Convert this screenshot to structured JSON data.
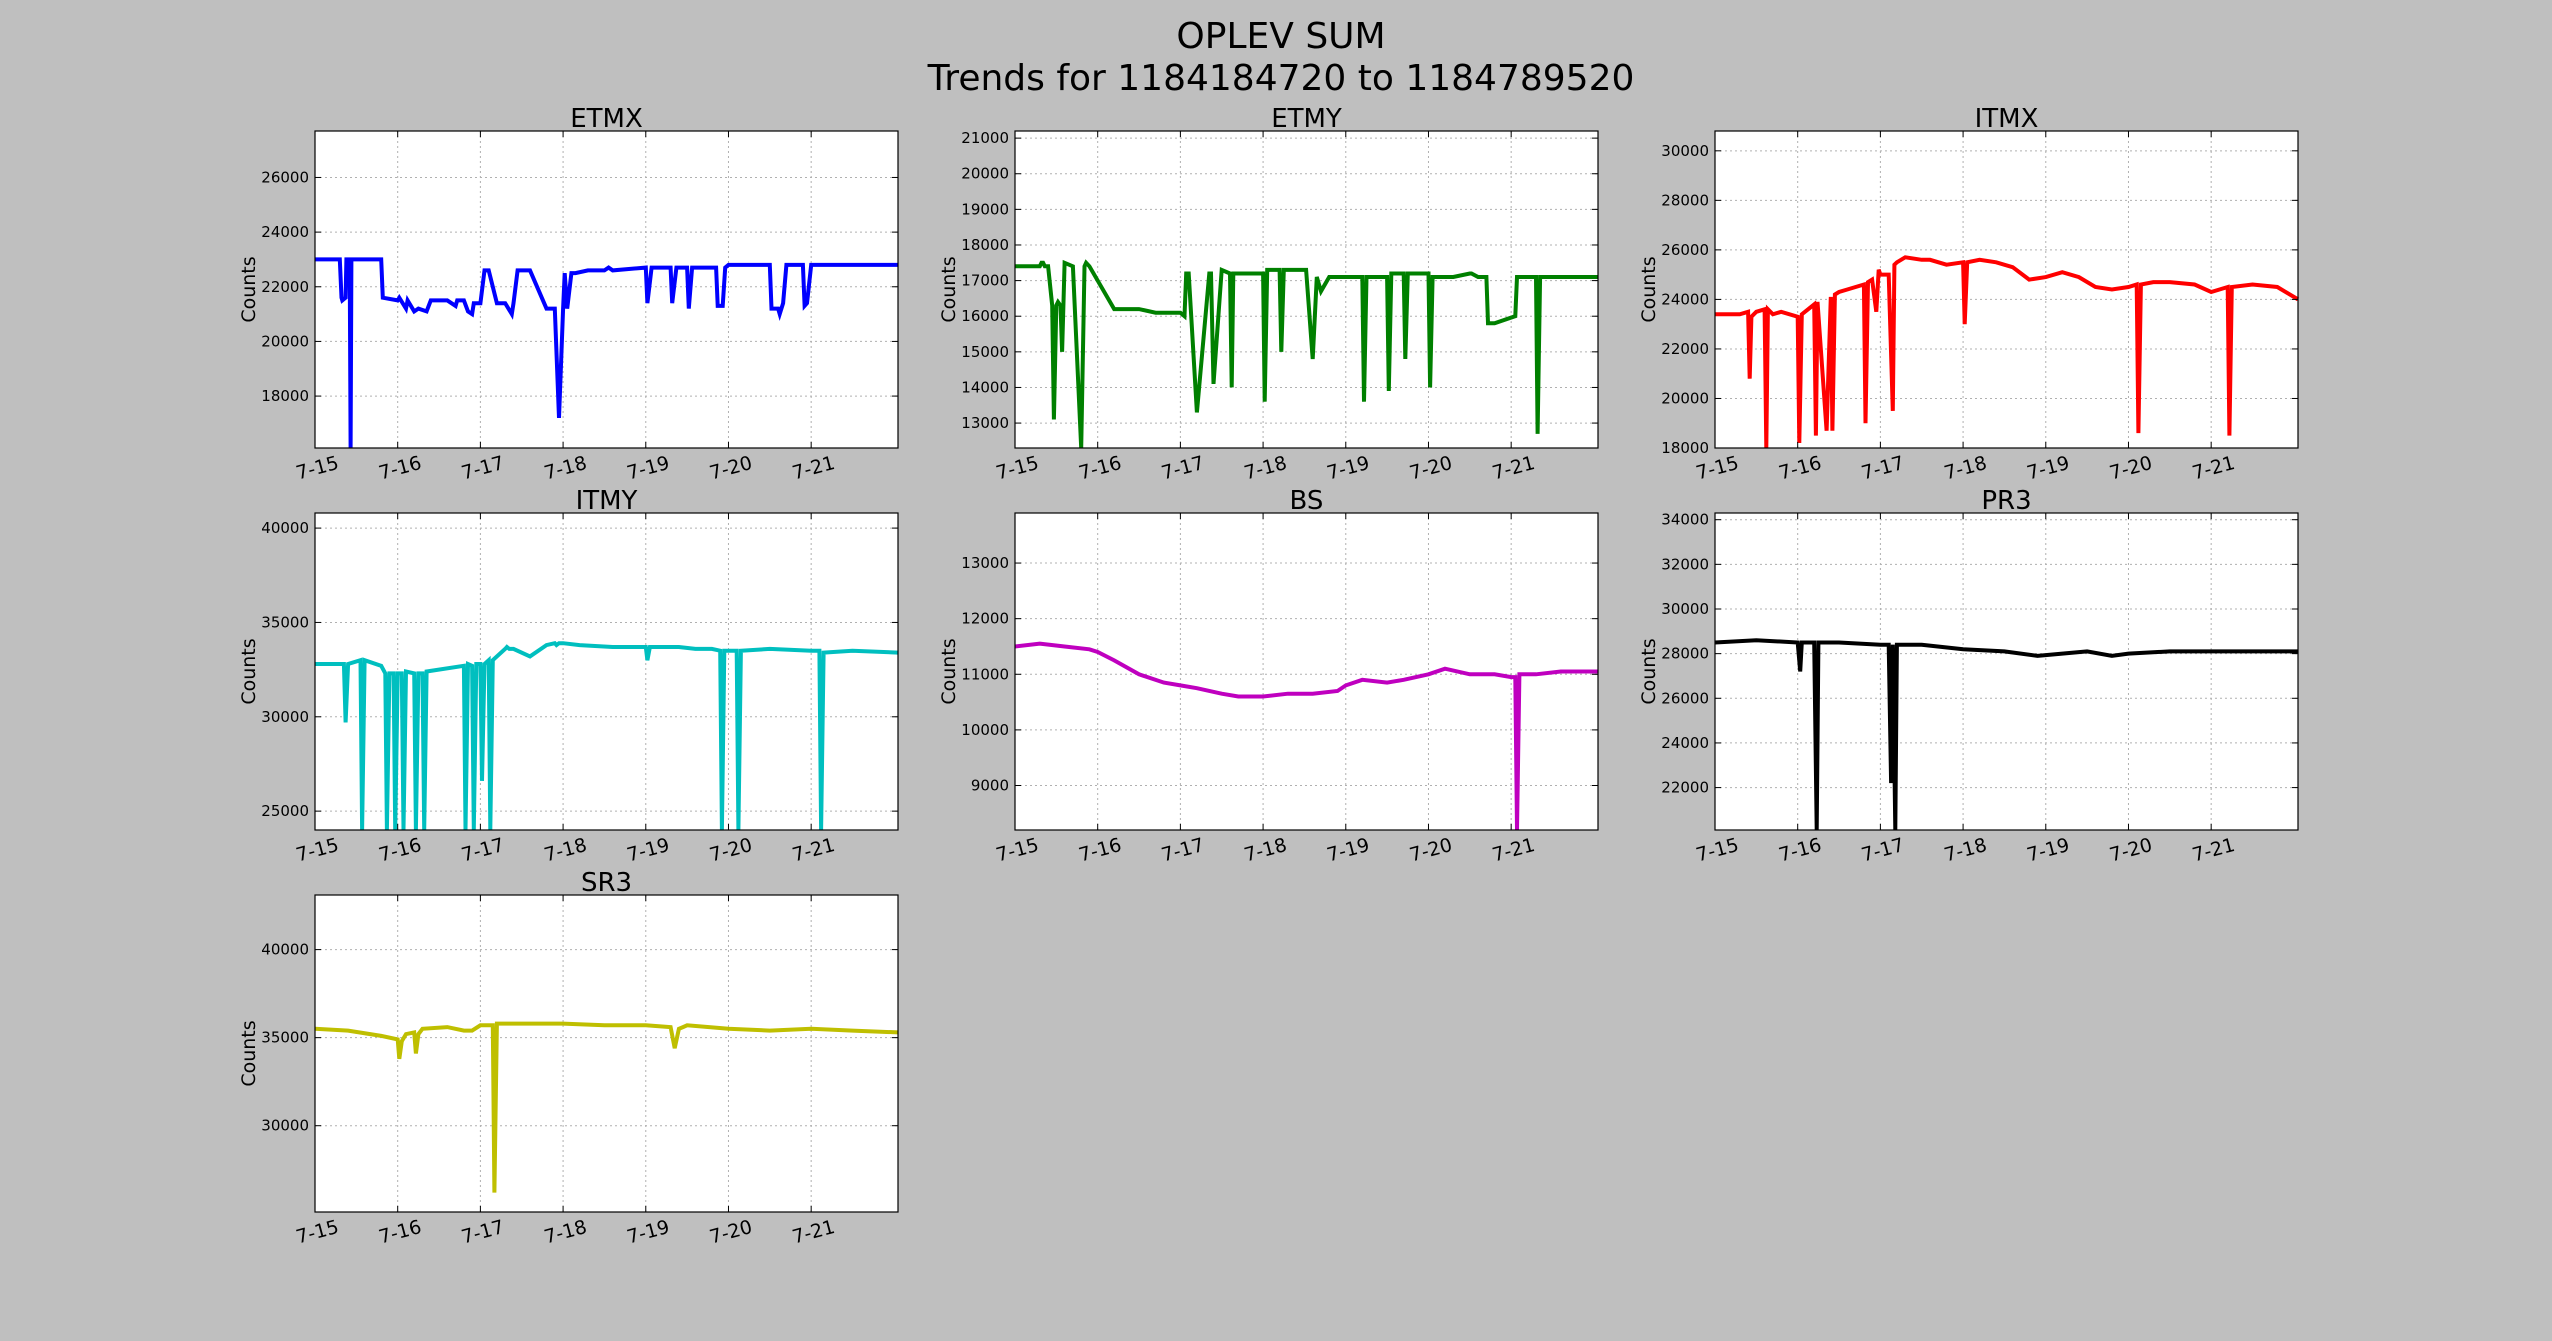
{
  "figure": {
    "title": "OPLEV SUM",
    "subtitle": "Trends for 1184184720 to 1184789520",
    "background": "#bfbfbf"
  },
  "chart_data": [
    {
      "type": "line",
      "title": "ETMX",
      "ylabel": "Counts",
      "color": "#0000ff",
      "xlim": [
        0,
        7.05
      ],
      "ylim": [
        16100,
        27700
      ],
      "yticks": [
        18000,
        20000,
        22000,
        24000,
        26000
      ],
      "xticks": [
        0,
        1,
        2,
        3,
        4,
        5,
        6
      ],
      "xticklabels": [
        "7-15",
        "7-16",
        "7-17",
        "7-18",
        "7-19",
        "7-20",
        "7-21"
      ],
      "grid": true,
      "series": [
        {
          "x": [
            0,
            0.3,
            0.32,
            0.33,
            0.37,
            0.38,
            0.42,
            0.43,
            0.44,
            0.49,
            0.5,
            0.55,
            0.58,
            0.6,
            0.62,
            0.65,
            0.7,
            0.8,
            0.82,
            1.0,
            1.02,
            1.1,
            1.12,
            1.2,
            1.25,
            1.35,
            1.4,
            1.6,
            1.7,
            1.72,
            1.8,
            1.85,
            1.9,
            1.92,
            2.0,
            2.05,
            2.1,
            2.2,
            2.3,
            2.38,
            2.4,
            2.45,
            2.5,
            2.6,
            2.8,
            2.9,
            2.95,
            3.0,
            3.02,
            3.05,
            3.1,
            3.15,
            3.3,
            3.5,
            3.55,
            3.6,
            4.0,
            4.02,
            4.07,
            4.1,
            4.3,
            4.32,
            4.37,
            4.4,
            4.5,
            4.52,
            4.56,
            4.6,
            4.85,
            4.87,
            4.93,
            4.96,
            5.0,
            5.1,
            5.2,
            5.5,
            5.52,
            5.6,
            5.62,
            5.66,
            5.7,
            5.75,
            5.9,
            5.92,
            5.95,
            6.0,
            6.5,
            6.55,
            6.8,
            7.05
          ],
          "y": [
            23000,
            23000,
            21600,
            21500,
            21600,
            23000,
            23000,
            16100,
            23000,
            23000,
            23000,
            23000,
            23000,
            23000,
            23000,
            23000,
            23000,
            23000,
            21600,
            21500,
            21600,
            21200,
            21500,
            21100,
            21200,
            21100,
            21500,
            21500,
            21300,
            21500,
            21500,
            21100,
            21000,
            21400,
            21400,
            22600,
            22600,
            21400,
            21400,
            21000,
            21400,
            22600,
            22600,
            22600,
            21200,
            21200,
            17200,
            21200,
            22500,
            21200,
            22500,
            22500,
            22600,
            22600,
            22700,
            22600,
            22700,
            21400,
            22700,
            22700,
            22700,
            21400,
            22700,
            22700,
            22700,
            21200,
            22700,
            22700,
            22700,
            21300,
            21300,
            22700,
            22800,
            22800,
            22800,
            22800,
            21200,
            21200,
            21000,
            21400,
            22800,
            22800,
            22800,
            21300,
            21400,
            22800,
            22800,
            22800,
            22800,
            22800
          ]
        }
      ]
    },
    {
      "type": "line",
      "title": "ETMY",
      "ylabel": "Counts",
      "color": "#008000",
      "xlim": [
        0,
        7.05
      ],
      "ylim": [
        12300,
        21200
      ],
      "yticks": [
        13000,
        14000,
        15000,
        16000,
        17000,
        18000,
        19000,
        20000,
        21000
      ],
      "xticks": [
        0,
        1,
        2,
        3,
        4,
        5,
        6
      ],
      "xticklabels": [
        "7-15",
        "7-16",
        "7-17",
        "7-18",
        "7-19",
        "7-20",
        "7-21"
      ],
      "grid": true,
      "series": [
        {
          "x": [
            0,
            0.3,
            0.32,
            0.34,
            0.36,
            0.4,
            0.45,
            0.47,
            0.5,
            0.52,
            0.55,
            0.57,
            0.6,
            0.7,
            0.8,
            0.84,
            0.86,
            0.9,
            1.2,
            1.5,
            1.7,
            1.9,
            2.0,
            2.05,
            2.07,
            2.1,
            2.2,
            2.35,
            2.37,
            2.4,
            2.5,
            2.6,
            2.62,
            2.64,
            3.0,
            3.02,
            3.05,
            3.2,
            3.22,
            3.25,
            3.5,
            3.52,
            3.6,
            3.65,
            3.7,
            3.8,
            4.2,
            4.22,
            4.25,
            4.5,
            4.52,
            4.55,
            4.7,
            4.72,
            4.75,
            5.0,
            5.02,
            5.05,
            5.3,
            5.5,
            5.52,
            5.6,
            5.7,
            5.72,
            5.8,
            6.05,
            6.07,
            6.3,
            6.32,
            6.35,
            7.05
          ],
          "y": [
            17400,
            17400,
            17500,
            17500,
            17400,
            17400,
            16300,
            13100,
            16300,
            16400,
            16300,
            15000,
            17500,
            17400,
            12300,
            17400,
            17500,
            17400,
            16200,
            16200,
            16100,
            16100,
            16100,
            16000,
            17200,
            17200,
            13300,
            17200,
            17200,
            14100,
            17300,
            17200,
            14000,
            17200,
            17200,
            13600,
            17300,
            17300,
            15000,
            17300,
            17300,
            17300,
            14800,
            17100,
            16700,
            17100,
            17100,
            13600,
            17100,
            17100,
            13900,
            17200,
            17200,
            14800,
            17200,
            17200,
            14000,
            17100,
            17100,
            17200,
            17200,
            17100,
            17100,
            15800,
            15800,
            16000,
            17100,
            17100,
            12700,
            17100,
            17100
          ]
        }
      ]
    },
    {
      "type": "line",
      "title": "ITMX",
      "ylabel": "Counts",
      "color": "#ff0000",
      "xlim": [
        0,
        7.05
      ],
      "ylim": [
        18000,
        30800
      ],
      "yticks": [
        18000,
        20000,
        22000,
        24000,
        26000,
        28000,
        30000
      ],
      "xticks": [
        0,
        1,
        2,
        3,
        4,
        5,
        6
      ],
      "xticklabels": [
        "7-15",
        "7-16",
        "7-17",
        "7-18",
        "7-19",
        "7-20",
        "7-21"
      ],
      "grid": true,
      "series": [
        {
          "x": [
            0,
            0.3,
            0.4,
            0.42,
            0.44,
            0.5,
            0.6,
            0.62,
            0.64,
            0.7,
            0.8,
            1.0,
            1.02,
            1.05,
            1.2,
            1.22,
            1.24,
            1.35,
            1.4,
            1.42,
            1.45,
            1.5,
            1.6,
            1.8,
            1.82,
            1.85,
            1.9,
            1.95,
            1.98,
            2.0,
            2.1,
            2.15,
            2.17,
            2.2,
            2.3,
            2.5,
            2.6,
            2.8,
            3.0,
            3.02,
            3.05,
            3.2,
            3.4,
            3.6,
            3.8,
            4.0,
            4.2,
            4.4,
            4.6,
            4.8,
            5.0,
            5.1,
            5.12,
            5.15,
            5.3,
            5.5,
            5.8,
            6.0,
            6.2,
            6.22,
            6.25,
            6.5,
            6.8,
            7.05
          ],
          "y": [
            23400,
            23400,
            23500,
            20800,
            23300,
            23500,
            23600,
            18000,
            23600,
            23400,
            23500,
            23300,
            18200,
            23400,
            23800,
            18500,
            23900,
            18700,
            24100,
            18700,
            24200,
            24300,
            24400,
            24600,
            19000,
            24700,
            24800,
            23500,
            25200,
            25000,
            25000,
            19500,
            25400,
            25500,
            25700,
            25600,
            25600,
            25400,
            25500,
            23000,
            25500,
            25600,
            25500,
            25300,
            24800,
            24900,
            25100,
            24900,
            24500,
            24400,
            24500,
            24600,
            18600,
            24600,
            24700,
            24700,
            24600,
            24300,
            24500,
            18500,
            24500,
            24600,
            24500,
            24000
          ]
        }
      ]
    },
    {
      "type": "line",
      "title": "ITMY",
      "ylabel": "Counts",
      "color": "#00bfbf",
      "xlim": [
        0,
        7.05
      ],
      "ylim": [
        24000,
        40800
      ],
      "yticks": [
        25000,
        30000,
        35000,
        40000
      ],
      "xticks": [
        0,
        1,
        2,
        3,
        4,
        5,
        6
      ],
      "xticklabels": [
        "7-15",
        "7-16",
        "7-17",
        "7-18",
        "7-19",
        "7-20",
        "7-21"
      ],
      "grid": true,
      "series": [
        {
          "x": [
            0,
            0.3,
            0.35,
            0.37,
            0.4,
            0.55,
            0.57,
            0.6,
            0.8,
            0.85,
            0.87,
            0.9,
            0.95,
            0.97,
            1.0,
            1.05,
            1.07,
            1.1,
            1.2,
            1.22,
            1.25,
            1.3,
            1.32,
            1.35,
            1.8,
            1.82,
            1.85,
            1.9,
            1.92,
            1.95,
            2.0,
            2.02,
            2.05,
            2.1,
            2.12,
            2.15,
            2.3,
            2.32,
            2.35,
            2.4,
            2.6,
            2.8,
            2.9,
            2.92,
            2.95,
            3.0,
            3.2,
            3.6,
            4.0,
            4.02,
            4.05,
            4.4,
            4.6,
            4.8,
            4.9,
            4.92,
            4.95,
            5.1,
            5.12,
            5.15,
            5.5,
            6.0,
            6.1,
            6.12,
            6.15,
            6.5,
            7.05
          ],
          "y": [
            32800,
            32800,
            32800,
            29700,
            32800,
            33000,
            24000,
            33000,
            32700,
            32300,
            24000,
            32300,
            32300,
            24000,
            32300,
            32300,
            24000,
            32400,
            32300,
            24000,
            32300,
            32300,
            24000,
            32400,
            32700,
            24000,
            32800,
            32700,
            24000,
            32800,
            32800,
            26600,
            32800,
            33000,
            24000,
            33000,
            33600,
            33700,
            33600,
            33600,
            33200,
            33800,
            33900,
            33800,
            33900,
            33900,
            33800,
            33700,
            33700,
            33000,
            33700,
            33700,
            33600,
            33600,
            33500,
            24000,
            33500,
            33500,
            24000,
            33500,
            33600,
            33500,
            33500,
            24000,
            33400,
            33500,
            33400
          ]
        }
      ]
    },
    {
      "type": "line",
      "title": "BS",
      "ylabel": "Counts",
      "color": "#bf00bf",
      "xlim": [
        0,
        7.05
      ],
      "ylim": [
        8200,
        13900
      ],
      "yticks": [
        9000,
        10000,
        11000,
        12000,
        13000
      ],
      "xticks": [
        0,
        1,
        2,
        3,
        4,
        5,
        6
      ],
      "xticklabels": [
        "7-15",
        "7-16",
        "7-17",
        "7-18",
        "7-19",
        "7-20",
        "7-21"
      ],
      "grid": true,
      "series": [
        {
          "x": [
            0,
            0.3,
            0.6,
            0.9,
            1.0,
            1.2,
            1.5,
            1.8,
            2.0,
            2.2,
            2.5,
            2.7,
            3.0,
            3.3,
            3.6,
            3.9,
            4.0,
            4.2,
            4.5,
            4.7,
            5.0,
            5.2,
            5.5,
            5.8,
            6.0,
            6.05,
            6.07,
            6.1,
            6.3,
            6.6,
            7.05
          ],
          "y": [
            11500,
            11550,
            11500,
            11450,
            11400,
            11250,
            11000,
            10850,
            10800,
            10750,
            10650,
            10600,
            10600,
            10650,
            10650,
            10700,
            10800,
            10900,
            10850,
            10900,
            11000,
            11100,
            11000,
            11000,
            10950,
            10950,
            8200,
            11000,
            11000,
            11050,
            11050
          ]
        }
      ]
    },
    {
      "type": "line",
      "title": "PR3",
      "ylabel": "Counts",
      "color": "#000000",
      "xlim": [
        0,
        7.05
      ],
      "ylim": [
        20100,
        34300
      ],
      "yticks": [
        22000,
        24000,
        26000,
        28000,
        30000,
        32000,
        34000
      ],
      "xticks": [
        0,
        1,
        2,
        3,
        4,
        5,
        6
      ],
      "xticklabels": [
        "7-15",
        "7-16",
        "7-17",
        "7-18",
        "7-19",
        "7-20",
        "7-21"
      ],
      "grid": true,
      "series": [
        {
          "x": [
            0,
            0.5,
            1.0,
            1.03,
            1.05,
            1.07,
            1.2,
            1.23,
            1.25,
            1.5,
            2.0,
            2.1,
            2.13,
            2.15,
            2.18,
            2.2,
            2.5,
            3.0,
            3.5,
            3.9,
            4.2,
            4.5,
            4.8,
            5.0,
            5.5,
            6.0,
            6.5,
            7.05
          ],
          "y": [
            28500,
            28600,
            28500,
            27200,
            28500,
            28500,
            28500,
            20100,
            28500,
            28500,
            28400,
            28400,
            22200,
            28400,
            20100,
            28400,
            28400,
            28200,
            28100,
            27900,
            28000,
            28100,
            27900,
            28000,
            28100,
            28100,
            28100,
            28100
          ]
        }
      ]
    },
    {
      "type": "line",
      "title": "SR3",
      "ylabel": "Counts",
      "color": "#bfbf00",
      "xlim": [
        0,
        7.05
      ],
      "ylim": [
        25100,
        43100
      ],
      "yticks": [
        30000,
        35000,
        40000
      ],
      "xticks": [
        0,
        1,
        2,
        3,
        4,
        5,
        6
      ],
      "xticklabels": [
        "7-15",
        "7-16",
        "7-17",
        "7-18",
        "7-19",
        "7-20",
        "7-21"
      ],
      "grid": true,
      "series": [
        {
          "x": [
            0,
            0.4,
            0.8,
            1.0,
            1.02,
            1.05,
            1.1,
            1.2,
            1.22,
            1.25,
            1.3,
            1.6,
            1.8,
            1.9,
            2.0,
            2.15,
            2.17,
            2.2,
            2.5,
            3.0,
            3.5,
            4.0,
            4.3,
            4.35,
            4.4,
            4.45,
            4.5,
            5.0,
            5.5,
            6.0,
            6.5,
            7.05
          ],
          "y": [
            35500,
            35400,
            35100,
            34900,
            33800,
            34800,
            35200,
            35300,
            34100,
            35200,
            35500,
            35600,
            35400,
            35400,
            35700,
            35700,
            26200,
            35800,
            35800,
            35800,
            35700,
            35700,
            35600,
            34400,
            35500,
            35600,
            35700,
            35500,
            35400,
            35500,
            35400,
            35300
          ]
        }
      ]
    }
  ]
}
